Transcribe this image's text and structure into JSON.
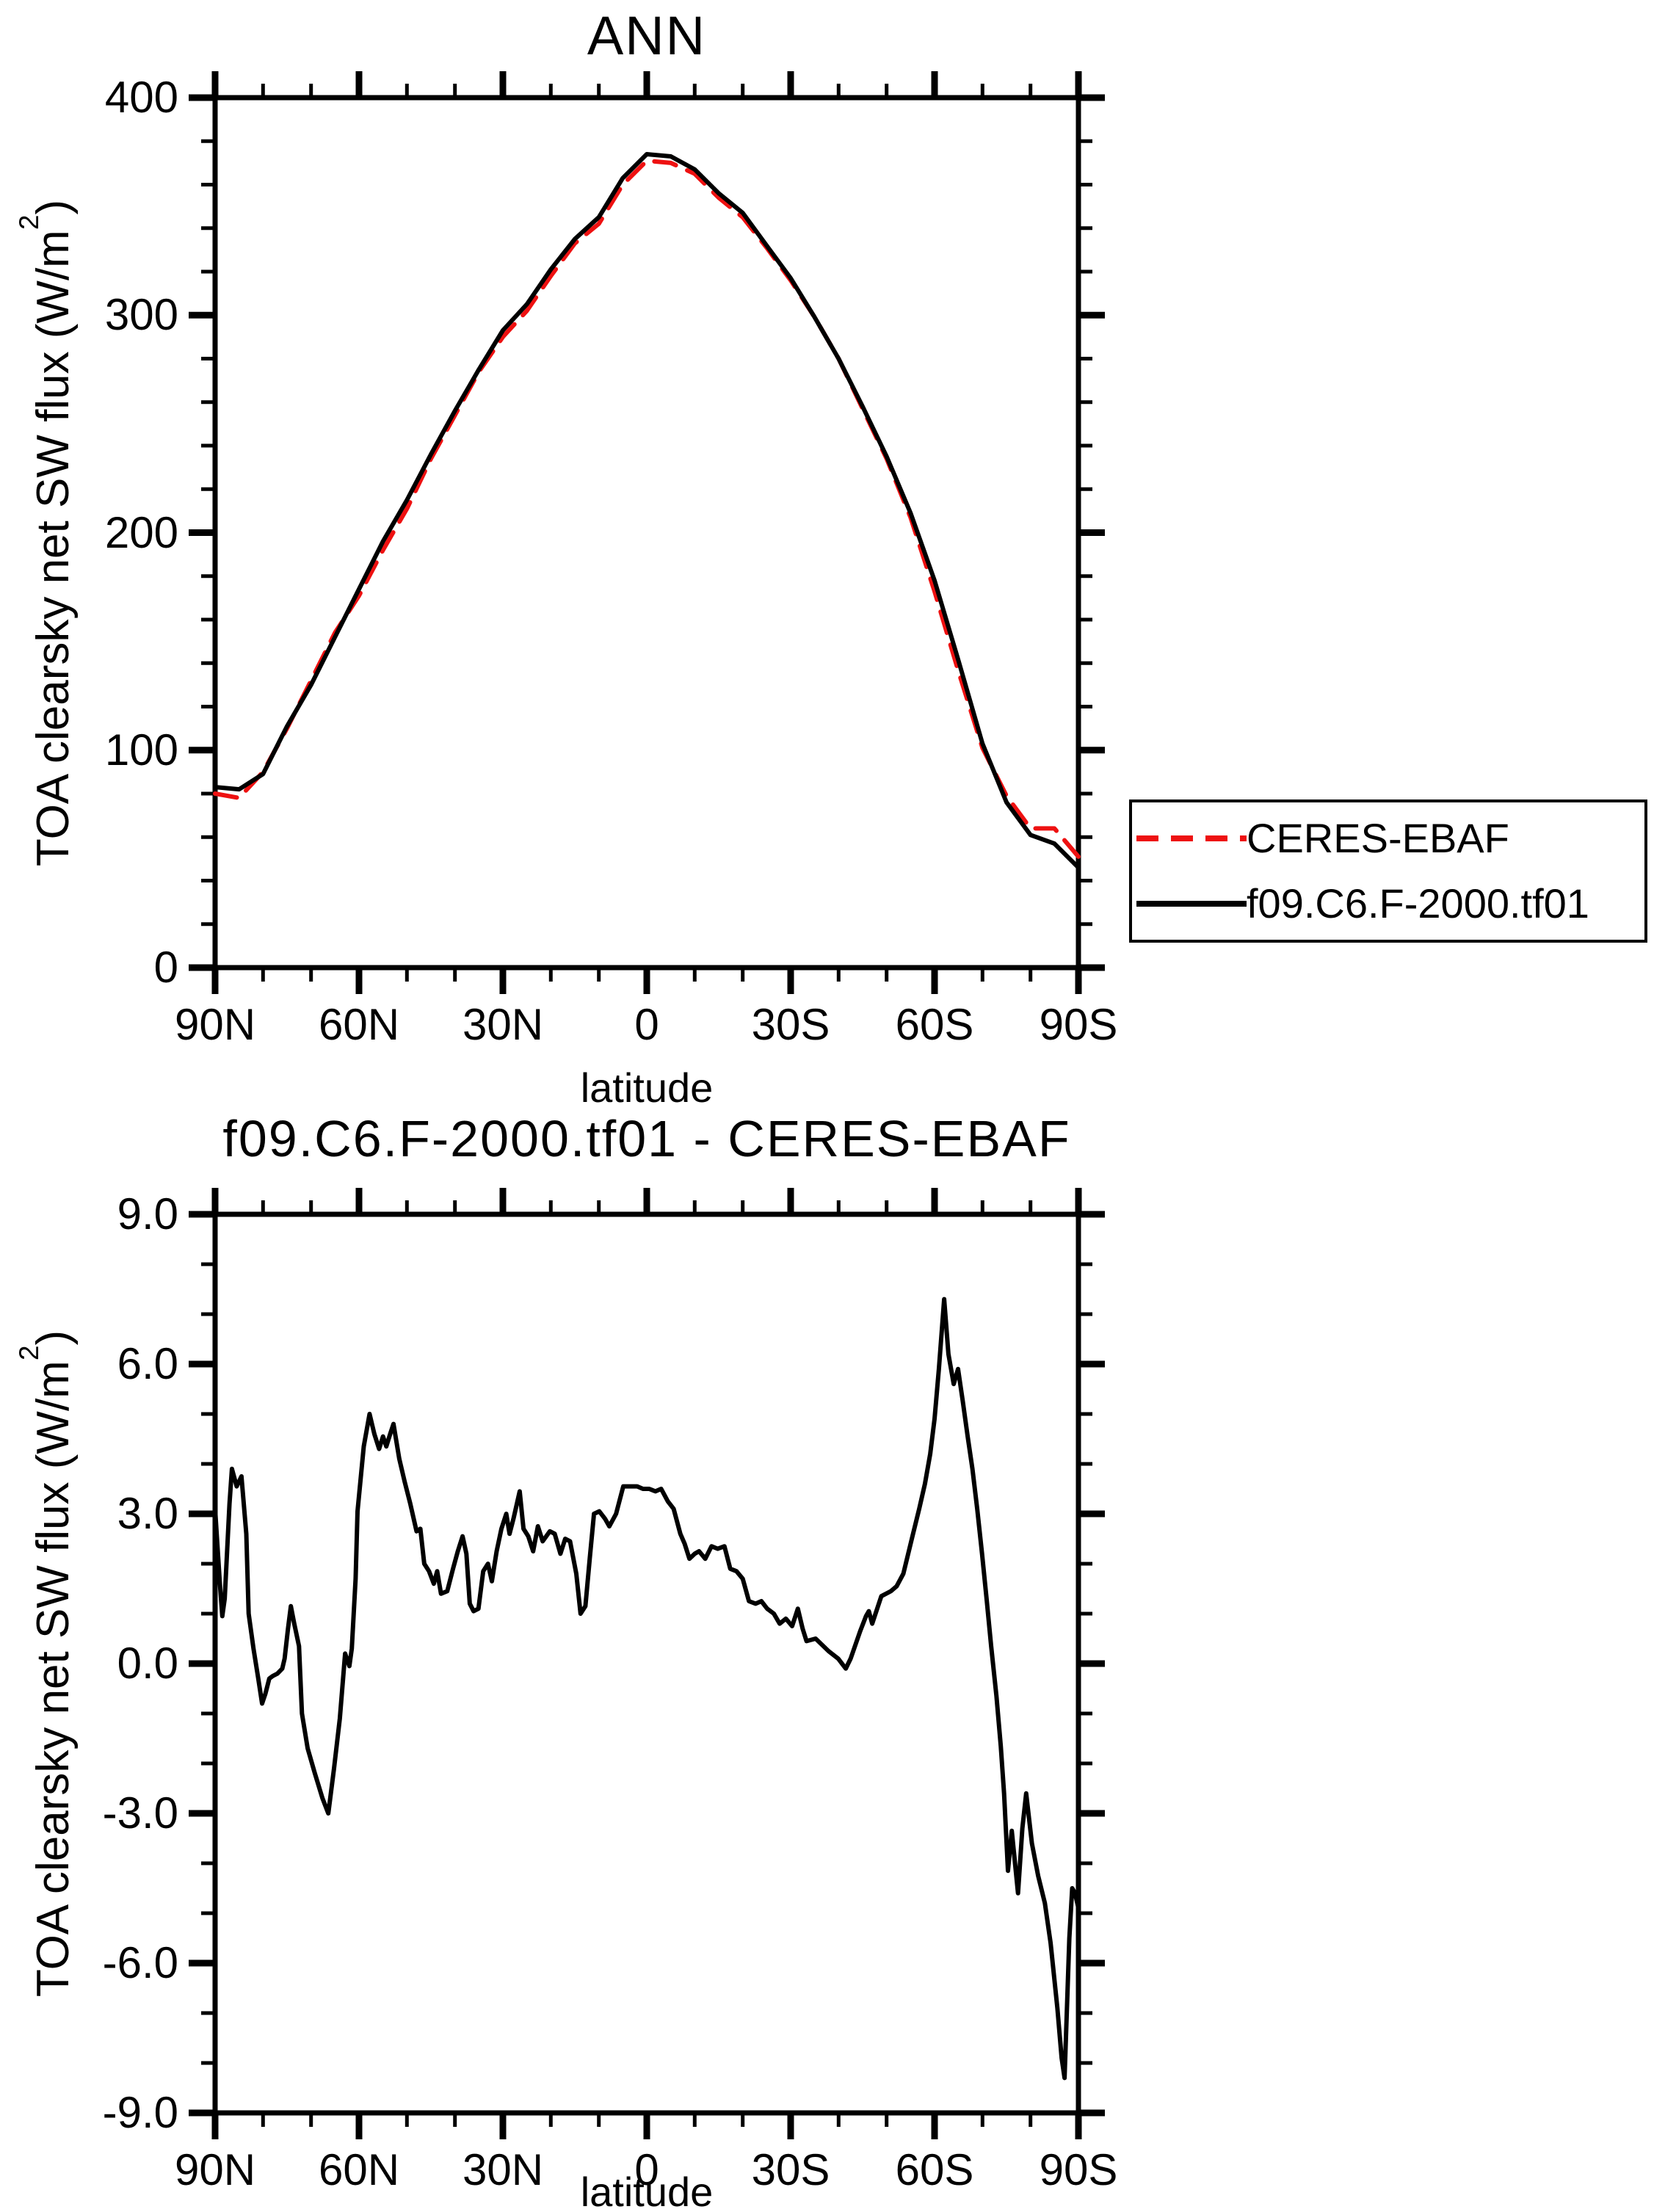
{
  "page": {
    "background": "#ffffff",
    "axis_color": "#000000"
  },
  "legend": {
    "position": "outside-right"
  },
  "chart_data": [
    {
      "panel": "top",
      "type": "line",
      "title": "ANN",
      "xlabel": "latitude",
      "ylabel": "TOA clearsky net SW flux (W/m2)",
      "ylabel_parts": {
        "pre": "TOA clearsky net SW flux (W/m",
        "sup": "2",
        "post": ")"
      },
      "xlim": [
        90,
        -90
      ],
      "ylim": [
        0,
        400
      ],
      "grid": false,
      "xticks": {
        "major": [
          90,
          60,
          30,
          0,
          -30,
          -60,
          -90
        ],
        "labels": [
          "90N",
          "60N",
          "30N",
          "0",
          "30S",
          "60S",
          "90S"
        ],
        "minor_step": 10
      },
      "yticks": {
        "major": [
          0,
          100,
          200,
          300,
          400
        ],
        "labels": [
          "0",
          "100",
          "200",
          "300",
          "400"
        ],
        "minor_step": 20
      },
      "series": [
        {
          "name": "CERES-EBAF",
          "color": "#ee1111",
          "style": "dashed",
          "lat": [
            90,
            85,
            80,
            75,
            70,
            65,
            60,
            55,
            50,
            45,
            40,
            35,
            30,
            25,
            20,
            15,
            10,
            5,
            0,
            -5,
            -10,
            -15,
            -20,
            -25,
            -30,
            -35,
            -40,
            -45,
            -50,
            -55,
            -60,
            -65,
            -70,
            -75,
            -80,
            -85,
            -90
          ],
          "values": [
            80,
            78,
            90,
            110,
            132,
            154,
            171,
            192,
            211,
            234,
            254,
            274,
            290,
            302,
            318,
            333,
            342,
            360,
            371,
            370,
            365,
            354,
            345,
            331,
            316,
            299,
            280,
            257,
            234,
            207,
            173,
            136,
            101,
            79,
            64,
            64,
            51
          ]
        },
        {
          "name": "f09.C6.F-2000.tf01",
          "color": "#000000",
          "style": "solid",
          "lat": [
            90,
            85,
            80,
            75,
            70,
            65,
            60,
            55,
            50,
            45,
            40,
            35,
            30,
            25,
            20,
            15,
            10,
            5,
            0,
            -5,
            -10,
            -15,
            -20,
            -25,
            -30,
            -35,
            -40,
            -45,
            -50,
            -55,
            -60,
            -65,
            -70,
            -75,
            -80,
            -85,
            -90
          ],
          "values": [
            83,
            82,
            89,
            111,
            130,
            152,
            174,
            196,
            215,
            236,
            256,
            275,
            293,
            305,
            321,
            335,
            345,
            363,
            374,
            373,
            367,
            356,
            347,
            332,
            317,
            299,
            280,
            258,
            235,
            209,
            178,
            141,
            103,
            76,
            61,
            57,
            46
          ]
        }
      ]
    },
    {
      "panel": "bottom",
      "type": "line",
      "title": "f09.C6.F-2000.tf01 - CERES-EBAF",
      "xlabel": "latitude",
      "ylabel": "TOA clearsky net SW flux (W/m2)",
      "ylabel_parts": {
        "pre": "TOA clearsky net SW flux (W/m",
        "sup": "2",
        "post": ")"
      },
      "xlim": [
        90,
        -90
      ],
      "ylim": [
        -9,
        9
      ],
      "grid": false,
      "xticks": {
        "major": [
          90,
          60,
          30,
          0,
          -30,
          -60,
          -90
        ],
        "labels": [
          "90N",
          "60N",
          "30N",
          "0",
          "30S",
          "60S",
          "90S"
        ],
        "minor_step": 10
      },
      "yticks": {
        "major": [
          -9,
          -6,
          -3,
          0,
          3,
          6,
          9
        ],
        "labels": [
          "-9.0",
          "-6.0",
          "-3.0",
          "0.0",
          "3.0",
          "6.0",
          "9.0"
        ],
        "minor_step": 1
      },
      "series": [
        {
          "name": "f09.C6.F-2000.tf01 - CERES-EBAF",
          "color": "#000000",
          "style": "solid",
          "lat": [
            90,
            89,
            88.5,
            88,
            87,
            86.5,
            85.5,
            84.5,
            83.5,
            83,
            82,
            81,
            80.2,
            79.5,
            78.7,
            78,
            77,
            76,
            75.5,
            74.8,
            74.2,
            73.5,
            72.5,
            71.9,
            70.7,
            69.2,
            67.6,
            66.4,
            65.2,
            64,
            63.1,
            62.9,
            62,
            61.5,
            60.7,
            60.3,
            59,
            57.8,
            56.8,
            55.8,
            55,
            54.3,
            53.5,
            52.8,
            51.6,
            50.5,
            49.3,
            48,
            47.2,
            46.4,
            45.4,
            44.4,
            43.7,
            42.9,
            41.6,
            40.4,
            39.4,
            38.4,
            37.6,
            36.9,
            36.1,
            35.1,
            34.1,
            33.1,
            32.3,
            31.3,
            30.3,
            29.3,
            28.6,
            27.8,
            26.5,
            25.7,
            24.7,
            23.7,
            22.7,
            21.7,
            20.2,
            19.2,
            18,
            17,
            16,
            14.7,
            13.8,
            12.8,
            11.9,
            11,
            9.9,
            8.7,
            7.8,
            6.4,
            4.9,
            3.5,
            2,
            0.8,
            -0.5,
            -1.8,
            -3,
            -4.4,
            -5.6,
            -7,
            -7.9,
            -8.9,
            -10,
            -10.9,
            -12.2,
            -13.5,
            -14.8,
            -16.2,
            -17.4,
            -18.7,
            -20,
            -21.3,
            -22.7,
            -23.9,
            -25.1,
            -26.5,
            -27.7,
            -29,
            -30.3,
            -31.5,
            -32.5,
            -33.3,
            -35.2,
            -37.9,
            -39.9,
            -41.5,
            -42.5,
            -44.5,
            -45.7,
            -46.3,
            -47,
            -48.9,
            -50.9,
            -52.1,
            -53.5,
            -55.4,
            -56.8,
            -58,
            -59.1,
            -60,
            -60.9,
            -62,
            -62.9,
            -64,
            -64.9,
            -65.9,
            -66.9,
            -67.9,
            -68.9,
            -69.9,
            -70.9,
            -71.8,
            -72.9,
            -73.8,
            -74.5,
            -75.3,
            -76.1,
            -77.4,
            -78.3,
            -79.1,
            -80.3,
            -81.6,
            -83,
            -84.2,
            -85.6,
            -86.5,
            -87.1,
            -88.1,
            -88.7,
            -89.3,
            -90
          ],
          "values": [
            3.1,
            1.6,
            0.95,
            1.3,
            3.2,
            3.9,
            3.55,
            3.75,
            2.6,
            1.0,
            0.3,
            -0.3,
            -0.8,
            -0.6,
            -0.3,
            -0.25,
            -0.2,
            -0.1,
            0.1,
            0.7,
            1.15,
            0.8,
            0.35,
            -1.0,
            -1.7,
            -2.2,
            -2.7,
            -3.0,
            -2.1,
            -1.1,
            -0.05,
            0.2,
            -0.05,
            0.3,
            1.7,
            3.05,
            4.35,
            5.0,
            4.6,
            4.3,
            4.55,
            4.35,
            4.6,
            4.8,
            4.1,
            3.65,
            3.2,
            2.65,
            2.7,
            2.0,
            1.85,
            1.6,
            1.85,
            1.4,
            1.45,
            1.9,
            2.25,
            2.55,
            2.2,
            1.2,
            1.05,
            1.1,
            1.85,
            2.0,
            1.65,
            2.25,
            2.7,
            3.0,
            2.6,
            2.9,
            3.45,
            2.7,
            2.55,
            2.25,
            2.75,
            2.45,
            2.65,
            2.6,
            2.2,
            2.5,
            2.45,
            1.8,
            1.0,
            1.15,
            2.1,
            3.0,
            3.05,
            2.9,
            2.75,
            3.0,
            3.55,
            3.55,
            3.55,
            3.5,
            3.5,
            3.45,
            3.5,
            3.25,
            3.1,
            2.6,
            2.4,
            2.1,
            2.2,
            2.25,
            2.1,
            2.35,
            2.3,
            2.35,
            1.9,
            1.85,
            1.7,
            1.25,
            1.2,
            1.25,
            1.1,
            1.0,
            0.8,
            0.9,
            0.75,
            1.1,
            0.7,
            0.45,
            0.5,
            0.25,
            0.1,
            -0.1,
            0.1,
            0.65,
            0.95,
            1.05,
            0.8,
            1.35,
            1.45,
            1.55,
            1.8,
            2.55,
            3.1,
            3.6,
            4.2,
            4.9,
            5.9,
            7.3,
            6.2,
            5.6,
            5.9,
            5.25,
            4.55,
            3.9,
            3.1,
            2.2,
            1.25,
            0.35,
            -0.65,
            -1.65,
            -2.6,
            -4.15,
            -3.35,
            -4.6,
            -3.3,
            -2.6,
            -3.6,
            -4.25,
            -4.8,
            -5.6,
            -6.9,
            -7.9,
            -8.3,
            -5.5,
            -4.5,
            -4.6,
            -4.9
          ]
        }
      ]
    }
  ]
}
